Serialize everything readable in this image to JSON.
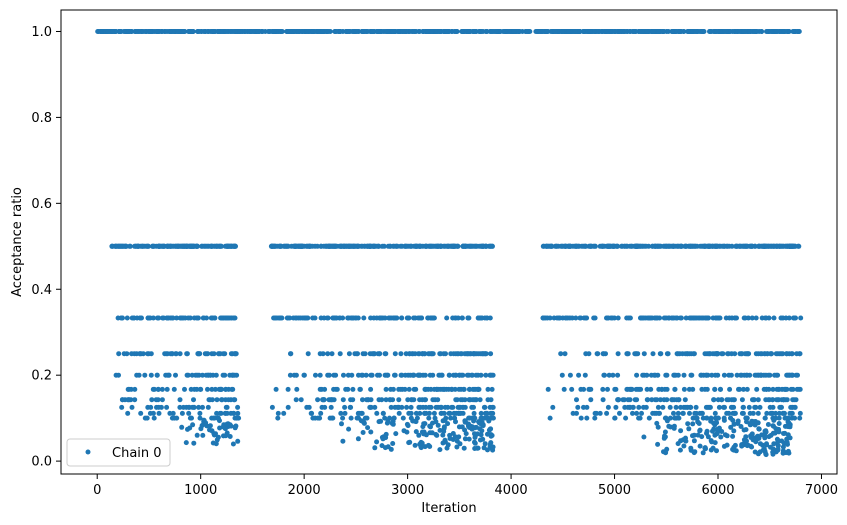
{
  "chart_data": {
    "type": "scatter",
    "xlabel": "Iteration",
    "ylabel": "Acceptance ratio",
    "xlim": [
      -350,
      7150
    ],
    "ylim": [
      -0.03,
      1.05
    ],
    "xticks": [
      0,
      1000,
      2000,
      3000,
      4000,
      5000,
      6000,
      7000
    ],
    "xtick_labels": [
      "0",
      "1000",
      "2000",
      "3000",
      "4000",
      "5000",
      "6000",
      "7000"
    ],
    "yticks": [
      0.0,
      0.2,
      0.4,
      0.6,
      0.8,
      1.0
    ],
    "ytick_labels": [
      "0.0",
      "0.2",
      "0.4",
      "0.6",
      "0.8",
      "1.0"
    ],
    "legend_placement": "lower-left",
    "grid": false,
    "series": [
      {
        "name": "Chain 0",
        "color": "#1f77b4",
        "marker": "dot",
        "blocks": [
          {
            "x_range": [
              0,
              6800
            ],
            "levels": [
              {
                "y": 1.0,
                "count": 900
              }
            ]
          },
          {
            "x_range": [
              140,
              1370
            ],
            "levels": [
              {
                "y": 0.5,
                "count": 160
              },
              {
                "y": 0.333,
                "count": 70
              },
              {
                "y": 0.25,
                "count": 45
              },
              {
                "y": 0.2,
                "count": 35
              },
              {
                "y": 0.167,
                "count": 30
              },
              {
                "y": 0.143,
                "count": 25
              },
              {
                "y": 0.125,
                "count": 22
              },
              {
                "y": 0.111,
                "count": 20
              },
              {
                "y": 0.1,
                "count": 18
              }
            ],
            "sparse": {
              "y_range": [
                0.035,
                0.095
              ],
              "x_range": [
                800,
                1370
              ],
              "count": 45
            }
          },
          {
            "x_range": [
              1680,
              3830
            ],
            "levels": [
              {
                "y": 0.5,
                "count": 260
              },
              {
                "y": 0.333,
                "count": 110
              },
              {
                "y": 0.25,
                "count": 80
              },
              {
                "y": 0.2,
                "count": 70
              },
              {
                "y": 0.167,
                "count": 60
              },
              {
                "y": 0.143,
                "count": 55
              },
              {
                "y": 0.125,
                "count": 50
              },
              {
                "y": 0.111,
                "count": 45
              },
              {
                "y": 0.1,
                "count": 40
              }
            ],
            "sparse": {
              "y_range": [
                0.025,
                0.095
              ],
              "x_range": [
                2300,
                3830
              ],
              "count": 150
            }
          },
          {
            "x_range": [
              4300,
              6800
            ],
            "levels": [
              {
                "y": 0.5,
                "count": 280
              },
              {
                "y": 0.333,
                "count": 120
              },
              {
                "y": 0.25,
                "count": 85
              },
              {
                "y": 0.2,
                "count": 70
              },
              {
                "y": 0.167,
                "count": 65
              },
              {
                "y": 0.143,
                "count": 60
              },
              {
                "y": 0.125,
                "count": 55
              },
              {
                "y": 0.111,
                "count": 50
              },
              {
                "y": 0.1,
                "count": 45
              }
            ],
            "sparse": {
              "y_range": [
                0.015,
                0.095
              ],
              "x_range": [
                5200,
                6700
              ],
              "count": 190
            }
          }
        ]
      }
    ]
  }
}
